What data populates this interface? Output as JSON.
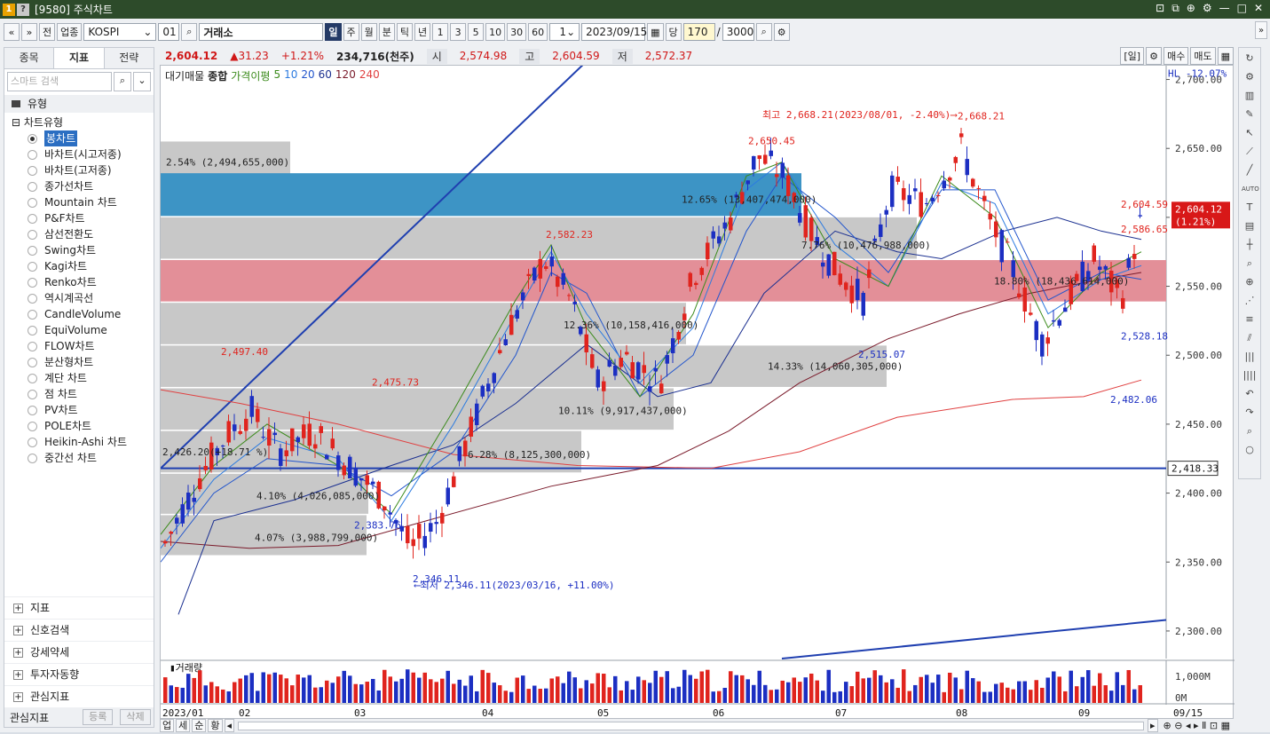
{
  "window": {
    "title": "[9580] 주식차트",
    "icons": [
      "pin-icon",
      "restore-icon",
      "link-icon",
      "gear-icon",
      "minimize-icon",
      "maximize-icon",
      "close-icon"
    ]
  },
  "toolbar": {
    "nav_prev": "«",
    "nav_next": "»",
    "prev_label": "전",
    "market_label": "업종",
    "market_value": "KOSPI",
    "code_value": "01",
    "exchange_value": "거래소",
    "periods": [
      "일",
      "주",
      "월",
      "분",
      "틱",
      "년"
    ],
    "active_period": "일",
    "intervals": [
      "1",
      "3",
      "5",
      "10",
      "30",
      "60"
    ],
    "count_value": "1",
    "date_value": "2023/09/15",
    "dang_label": "당",
    "view_count": "170",
    "slash": "/",
    "total_count": "3000"
  },
  "left": {
    "tabs": [
      "종목",
      "지표",
      "전략"
    ],
    "active_tab": "지표",
    "search_placeholder": "스마트 검색",
    "section": "유형",
    "tree_head": "차트유형",
    "chart_types": [
      "봉차트",
      "바차트(시고저종)",
      "바차트(고저종)",
      "종가선차트",
      "Mountain 차트",
      "P&F차트",
      "삼선전환도",
      "Swing차트",
      "Kagi차트",
      "Renko차트",
      "역시계곡선",
      "CandleVolume",
      "EquiVolume",
      "FLOW차트",
      "분산형차트",
      "계단 차트",
      "점 차트",
      "PV차트",
      "POLE차트",
      "Heikin-Ashi 차트",
      "중간선 차트"
    ],
    "selected_type": "봉차트",
    "groups": [
      "지표",
      "신호검색",
      "강세약세",
      "투자자동향",
      "관심지표"
    ],
    "footer_label": "관심지표",
    "footer_buttons": [
      "등록",
      "삭제"
    ]
  },
  "price_strip": {
    "close": "2,604.12",
    "change": "▲31.23",
    "change_pct": "+1.21%",
    "volume": "234,716(천주)",
    "open_label": "시",
    "open": "2,574.98",
    "high_label": "고",
    "high": "2,604.59",
    "low_label": "저",
    "low": "2,572.37",
    "unit_label": "[일]",
    "buy_label": "매수",
    "sell_label": "매도"
  },
  "legend": {
    "volume_profile": "대기매물",
    "combined": "종합",
    "ma_label": "가격이평",
    "ma_periods": [
      "5",
      "10",
      "20",
      "60",
      "120",
      "240"
    ]
  },
  "annotations": {
    "max_note": "최고 2,668.21(2023/08/01, -2.40%)⟶",
    "min_note": "⟵최저 2,346.11(2023/03/16, +11.00%)",
    "hl_note": "HL -12.07%",
    "current_price_tag": "2,604.12",
    "current_pct_tag": "(1.21%)",
    "line_price_tag": "2,418.33",
    "peak_labels": [
      "2,497.40",
      "2,475.73",
      "2,582.23",
      "2,650.45",
      "2,668.21",
      "2,586.65",
      "2,604.59"
    ],
    "trough_labels": [
      "2,383.76",
      "2,346.11",
      "2,515.07",
      "2,482.06",
      "2,528.18"
    ],
    "profile_labels": [
      "2.54% (2,494,655,000)",
      "12.65% (13,407,474,000)",
      "7.76% (10,476,988,000)",
      "18.80% (18,436,614,000)",
      "12.36% (10,158,416,000)",
      "14.33% (14,060,305,000)",
      "10.11% (9,917,437,000)",
      "2,426.20(+18.71 %)",
      "6.28% (8,125,300,000)",
      "4.10% (4,026,085,000)",
      "4.07% (3,988,799,000)"
    ]
  },
  "volume_panel": {
    "title": "거래량",
    "axis_top": "1,000M",
    "axis_bottom": "0M"
  },
  "chart_data": {
    "type": "candlestick",
    "symbol": "KOSPI",
    "ylim": [
      2280,
      2710
    ],
    "y_ticks": [
      "2,700.00",
      "2,650.00",
      "2,600.00",
      "2,550.00",
      "2,500.00",
      "2,450.00",
      "2,400.00",
      "2,350.00",
      "2,300.00"
    ],
    "x_ticks": [
      "2023/01",
      "02",
      "03",
      "04",
      "05",
      "06",
      "07",
      "08",
      "09",
      "09/15"
    ],
    "key_points": [
      {
        "label": "high",
        "date": "2023/08/01",
        "value": 2668.21
      },
      {
        "label": "low",
        "date": "2023/03/16",
        "value": 2346.11
      },
      {
        "label": "last",
        "date": "2023/09/15",
        "value": 2604.12
      }
    ],
    "colors": {
      "up": "#e0241e",
      "down": "#1c2fc2",
      "ma5": "#3a8a1a",
      "ma10": "#2c7be0",
      "ma20": "#2255cc",
      "ma60": "#1a2f90",
      "ma120": "#7a1a2a",
      "ma240": "#e04040"
    }
  }
}
